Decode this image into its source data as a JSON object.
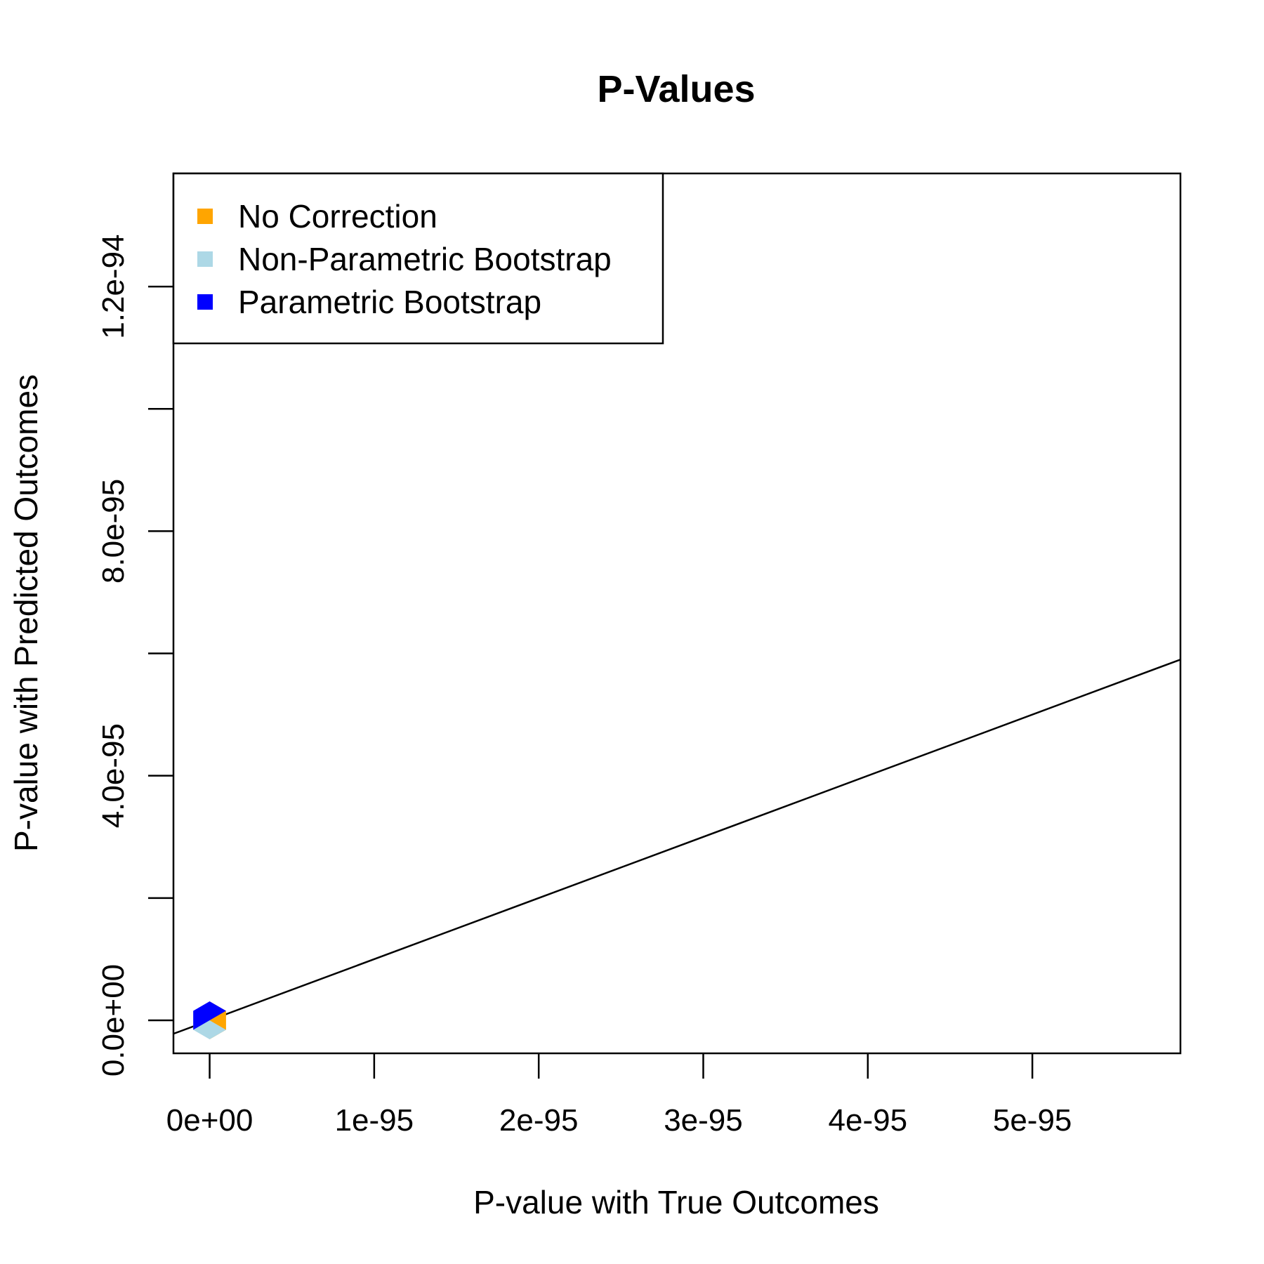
{
  "chart_data": {
    "type": "scatter",
    "title": "P-Values",
    "xlabel": "P-value with True Outcomes",
    "ylabel": "P-value with Predicted Outcomes",
    "x_range": [
      -2.2e-96,
      5.9e-95
    ],
    "y_range": [
      -5.4e-96,
      1.385e-94
    ],
    "x_ticks": [
      {
        "value": 0,
        "label": "0e+00"
      },
      {
        "value": 1e-95,
        "label": "1e-95"
      },
      {
        "value": 2e-95,
        "label": "2e-95"
      },
      {
        "value": 3e-95,
        "label": "3e-95"
      },
      {
        "value": 4e-95,
        "label": "4e-95"
      },
      {
        "value": 5e-95,
        "label": "5e-95"
      }
    ],
    "y_ticks": [
      {
        "value": 0,
        "label": "0.0e+00"
      },
      {
        "value": 2e-95,
        "label": ""
      },
      {
        "value": 4e-95,
        "label": "4.0e-95"
      },
      {
        "value": 6e-95,
        "label": ""
      },
      {
        "value": 8e-95,
        "label": "8.0e-95"
      },
      {
        "value": 1e-94,
        "label": ""
      },
      {
        "value": 1.2e-94,
        "label": "1.2e-94"
      }
    ],
    "reference_line": {
      "type": "identity",
      "slope": 1,
      "intercept": 0,
      "color": "#000000"
    },
    "series": [
      {
        "name": "No Correction",
        "color": "#FFA500",
        "x": [
          0
        ],
        "y": [
          0
        ]
      },
      {
        "name": "Non-Parametric Bootstrap",
        "color": "#ADD8E6",
        "x": [
          0
        ],
        "y": [
          0
        ]
      },
      {
        "name": "Parametric Bootstrap",
        "color": "#0000FF",
        "x": [
          0
        ],
        "y": [
          0
        ]
      }
    ],
    "legend": {
      "position": "top-left",
      "entries": [
        {
          "label": "No Correction",
          "color": "#FFA500"
        },
        {
          "label": "Non-Parametric Bootstrap",
          "color": "#ADD8E6"
        },
        {
          "label": "Parametric Bootstrap",
          "color": "#0000FF"
        }
      ]
    },
    "grid": false
  }
}
